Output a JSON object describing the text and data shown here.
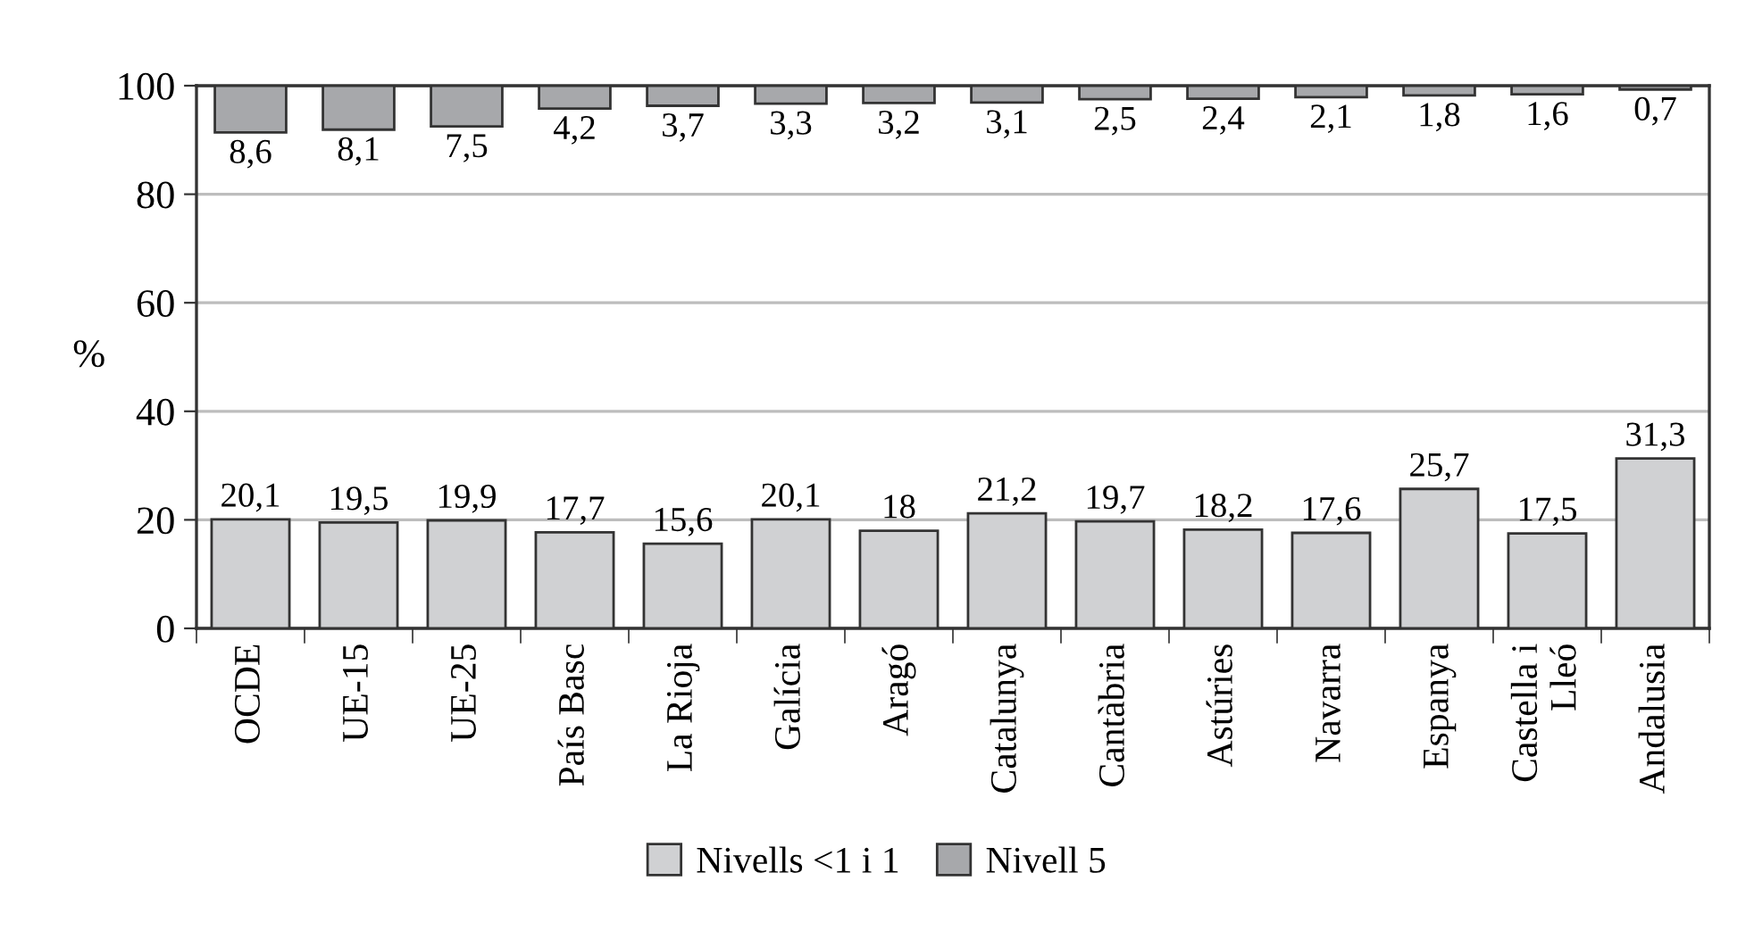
{
  "chart_data": {
    "type": "bar",
    "categories": [
      "OCDE",
      "UE-15",
      "UE-25",
      "País Basc",
      "La Rioja",
      "Galícia",
      "Aragó",
      "Catalunya",
      "Cantàbria",
      "Astúries",
      "Navarra",
      "Espanya",
      "Castella i Lleó",
      "Andalusia"
    ],
    "series": [
      {
        "name": "Nivells <1 i 1",
        "color": "#d0d1d3",
        "values": [
          20.1,
          19.5,
          19.9,
          17.7,
          15.6,
          20.1,
          18,
          21.2,
          19.7,
          18.2,
          17.6,
          25.7,
          17.5,
          31.3
        ],
        "value_labels": [
          "20,1",
          "19,5",
          "19,9",
          "17,7",
          "15,6",
          "20,1",
          "18",
          "21,2",
          "19,7",
          "18,2",
          "17,6",
          "25,7",
          "17,5",
          "31,3"
        ]
      },
      {
        "name": "Nivell 5",
        "color": "#a7a8ab",
        "base": [
          91.4,
          91.9,
          92.5,
          95.8,
          96.3,
          96.7,
          96.8,
          96.9,
          97.5,
          97.6,
          97.9,
          98.2,
          98.4,
          99.3
        ],
        "values": [
          8.6,
          8.1,
          7.5,
          4.2,
          3.7,
          3.3,
          3.2,
          3.1,
          2.5,
          2.4,
          2.1,
          1.8,
          1.6,
          0.7
        ],
        "value_labels": [
          "8,6",
          "8,1",
          "7,5",
          "4,2",
          "3,7",
          "3,3",
          "3,2",
          "3,1",
          "2,5",
          "2,4",
          "2,1",
          "1,8",
          "1,6",
          "0,7"
        ]
      }
    ],
    "ylabel": "%",
    "ylim": [
      0,
      100
    ],
    "yticks": [
      0,
      20,
      40,
      60,
      80,
      100
    ],
    "grid": "y",
    "legend": "bottom"
  }
}
